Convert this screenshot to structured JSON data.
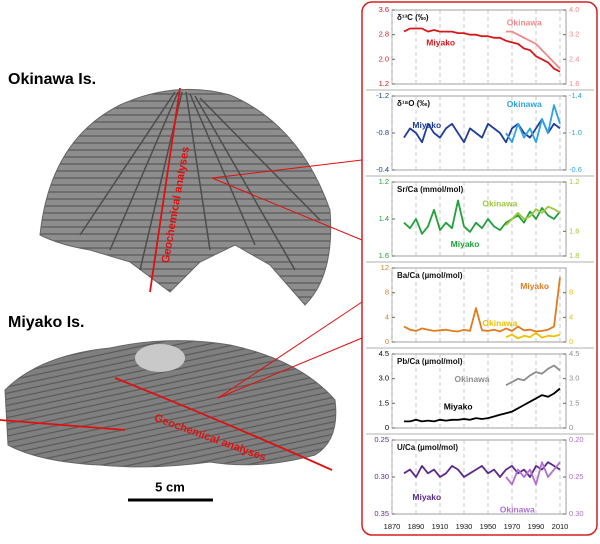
{
  "labels": {
    "okinawa": "Okinawa Is.",
    "miyako": "Miyako Is.",
    "analysis_okinawa": "Geochemical analyses",
    "analysis_miyako": "Geochemical analyses",
    "scale": "5 cm"
  },
  "chart_data": [
    {
      "type": "line",
      "title": "δ¹³C (‰)",
      "x": [
        1880,
        1885,
        1890,
        1895,
        1900,
        1905,
        1910,
        1915,
        1920,
        1925,
        1930,
        1935,
        1940,
        1945,
        1950,
        1955,
        1960,
        1965,
        1970,
        1975,
        1980,
        1985,
        1990,
        1995,
        2000,
        2005,
        2010
      ],
      "xlim": [
        1870,
        2015
      ],
      "xticks": [
        1870,
        1890,
        1910,
        1930,
        1950,
        1970,
        1990,
        2010
      ],
      "xgrid": true,
      "ylim": [
        1.2,
        3.6
      ],
      "yticks": [
        1.2,
        {
          "value": 2,
          "label": "2.0"
        },
        2.8,
        3.6
      ],
      "y2lim": [
        1.6,
        4
      ],
      "y2ticks": [
        1.6,
        2.4,
        3.2,
        {
          "value": 4,
          "label": "4.0"
        }
      ],
      "series": [
        {
          "name": "Miyako",
          "color": "#d7191c",
          "values": [
            2.9,
            3.0,
            3.0,
            3.0,
            2.9,
            2.95,
            2.9,
            2.9,
            2.9,
            2.85,
            2.85,
            2.8,
            2.8,
            2.75,
            2.75,
            2.7,
            2.7,
            2.6,
            2.55,
            2.5,
            2.35,
            2.3,
            2.1,
            2.0,
            1.9,
            1.7,
            1.6
          ]
        },
        {
          "name": "Okinawa",
          "color": "#ef8a8a",
          "axis": "y2",
          "values": [
            null,
            null,
            null,
            null,
            null,
            null,
            null,
            null,
            null,
            null,
            null,
            null,
            null,
            null,
            null,
            null,
            null,
            3.3,
            3.3,
            3.2,
            3.1,
            3.0,
            2.9,
            2.7,
            2.5,
            2.3,
            2.1
          ]
        }
      ]
    },
    {
      "type": "line",
      "title": "δ¹⁸O (‰)",
      "x": [
        1880,
        1885,
        1890,
        1895,
        1900,
        1905,
        1910,
        1915,
        1920,
        1925,
        1930,
        1935,
        1940,
        1945,
        1950,
        1955,
        1960,
        1965,
        1970,
        1975,
        1980,
        1985,
        1990,
        1995,
        2000,
        2005,
        2010
      ],
      "xlim": [
        1870,
        2015
      ],
      "xticks": [
        1870,
        1890,
        1910,
        1930,
        1950,
        1970,
        1990,
        2010
      ],
      "xgrid": true,
      "ylim": [
        -0.4,
        -1.2
      ],
      "yticks": [
        -1.2,
        -0.8,
        -0.4
      ],
      "y2lim": [
        -0.6,
        -1.4
      ],
      "y2ticks": [
        -1.4,
        {
          "value": -1,
          "label": "-1.0"
        },
        -0.6
      ],
      "series": [
        {
          "name": "Miyako",
          "color": "#1f3d99",
          "values": [
            -0.75,
            -0.85,
            -0.8,
            -0.7,
            -0.9,
            -0.8,
            -0.75,
            -0.85,
            -0.9,
            -0.8,
            -0.7,
            -0.85,
            -0.8,
            -0.75,
            -0.9,
            -0.85,
            -0.8,
            -0.7,
            -0.85,
            -0.9,
            -0.8,
            -0.75,
            -0.85,
            -0.95,
            -0.8,
            -0.9,
            -0.85
          ]
        },
        {
          "name": "Okinawa",
          "color": "#2ea3e0",
          "axis": "y2",
          "values": [
            null,
            null,
            null,
            null,
            null,
            null,
            null,
            null,
            null,
            null,
            null,
            null,
            null,
            null,
            null,
            null,
            null,
            -1.0,
            -0.9,
            -1.1,
            -0.95,
            -1.05,
            -0.9,
            -1.15,
            -1.0,
            -1.3,
            -1.1
          ]
        }
      ]
    },
    {
      "type": "line",
      "title": "Sr/Ca (mmol/mol)",
      "x": [
        1880,
        1885,
        1890,
        1895,
        1900,
        1905,
        1910,
        1915,
        1920,
        1925,
        1930,
        1935,
        1940,
        1945,
        1950,
        1955,
        1960,
        1965,
        1970,
        1975,
        1980,
        1985,
        1990,
        1995,
        2000,
        2005,
        2010
      ],
      "xlim": [
        1870,
        2015
      ],
      "xticks": [
        1870,
        1890,
        1910,
        1930,
        1950,
        1970,
        1990,
        2010
      ],
      "xgrid": true,
      "ylim": [
        1.6,
        1.2
      ],
      "yticks": [
        1.2,
        1.4,
        1.6
      ],
      "y2lim": [
        1.8,
        1.2
      ],
      "y2ticks": [
        1.2,
        1.6,
        1.8
      ],
      "series": [
        {
          "name": "Miyako",
          "color": "#22a03a",
          "values": [
            1.42,
            1.45,
            1.4,
            1.48,
            1.44,
            1.35,
            1.46,
            1.42,
            1.45,
            1.3,
            1.44,
            1.47,
            1.42,
            1.45,
            1.4,
            1.44,
            1.46,
            1.42,
            1.4,
            1.38,
            1.42,
            1.36,
            1.4,
            1.34,
            1.38,
            1.4,
            1.36
          ]
        },
        {
          "name": "Okinawa",
          "color": "#9cc83c",
          "axis": "y2",
          "values": [
            null,
            null,
            null,
            null,
            null,
            null,
            null,
            null,
            null,
            null,
            null,
            null,
            null,
            null,
            null,
            null,
            null,
            1.55,
            1.5,
            1.45,
            1.5,
            1.48,
            1.42,
            1.45,
            1.4,
            1.42,
            1.45
          ]
        }
      ]
    },
    {
      "type": "line",
      "title": "Ba/Ca (µmol/mol)",
      "x": [
        1880,
        1885,
        1890,
        1895,
        1900,
        1905,
        1910,
        1915,
        1920,
        1925,
        1930,
        1935,
        1940,
        1945,
        1950,
        1955,
        1960,
        1965,
        1970,
        1975,
        1980,
        1985,
        1990,
        1995,
        2000,
        2005,
        2010
      ],
      "xlim": [
        1870,
        2015
      ],
      "xticks": [
        1870,
        1890,
        1910,
        1930,
        1950,
        1970,
        1990,
        2010
      ],
      "xgrid": true,
      "ylim": [
        0,
        12
      ],
      "yticks": [
        0,
        4,
        8,
        12
      ],
      "y2lim": [
        0,
        12
      ],
      "y2ticks": [
        0,
        4,
        8
      ],
      "series": [
        {
          "name": "Miyako",
          "color": "#e07b20",
          "values": [
            2.5,
            2.0,
            1.8,
            2.2,
            2.0,
            1.8,
            1.9,
            2.0,
            1.8,
            1.7,
            2.0,
            1.8,
            5.5,
            1.9,
            1.8,
            2.0,
            1.7,
            2.2,
            1.8,
            2.5,
            1.9,
            2.0,
            1.7,
            1.8,
            2.0,
            2.5,
            10.5
          ]
        },
        {
          "name": "Okinawa",
          "color": "#f0c000",
          "axis": "y2",
          "values": [
            null,
            null,
            null,
            null,
            null,
            null,
            null,
            null,
            null,
            null,
            null,
            null,
            null,
            null,
            null,
            null,
            null,
            0.8,
            1.2,
            0.6,
            1.0,
            0.8,
            1.5,
            0.7,
            1.0,
            0.9,
            1.2
          ]
        }
      ]
    },
    {
      "type": "line",
      "title": "Pb/Ca (µmol/mol)",
      "x": [
        1880,
        1885,
        1890,
        1895,
        1900,
        1905,
        1910,
        1915,
        1920,
        1925,
        1930,
        1935,
        1940,
        1945,
        1950,
        1955,
        1960,
        1965,
        1970,
        1975,
        1980,
        1985,
        1990,
        1995,
        2000,
        2005,
        2010
      ],
      "xlim": [
        1870,
        2015
      ],
      "xticks": [
        1870,
        1890,
        1910,
        1930,
        1950,
        1970,
        1990,
        2010
      ],
      "xgrid": true,
      "ylim": [
        0,
        4.5
      ],
      "yticks": [
        0,
        1.5,
        {
          "value": 3,
          "label": "3.0"
        },
        4.5
      ],
      "y2lim": [
        0,
        4.5
      ],
      "y2ticks": [
        0,
        1.5,
        {
          "value": 3,
          "label": "3.0"
        },
        4.5
      ],
      "series": [
        {
          "name": "Miyako",
          "color": "#000000",
          "values": [
            0.4,
            0.4,
            0.5,
            0.4,
            0.45,
            0.4,
            0.5,
            0.45,
            0.5,
            0.5,
            0.55,
            0.5,
            0.6,
            0.55,
            0.6,
            0.7,
            0.8,
            0.9,
            1.0,
            1.2,
            1.4,
            1.6,
            1.8,
            2.0,
            1.9,
            2.1,
            2.4
          ]
        },
        {
          "name": "Okinawa",
          "color": "#8c8c8c",
          "axis": "y2",
          "values": [
            null,
            null,
            null,
            null,
            null,
            null,
            null,
            null,
            null,
            null,
            null,
            null,
            null,
            null,
            null,
            null,
            null,
            2.6,
            2.8,
            3.0,
            2.9,
            3.2,
            3.4,
            3.3,
            3.6,
            3.8,
            3.5
          ]
        }
      ]
    },
    {
      "type": "line",
      "title": "U/Ca (µmol/mol)",
      "x": [
        1880,
        1885,
        1890,
        1895,
        1900,
        1905,
        1910,
        1915,
        1920,
        1925,
        1930,
        1935,
        1940,
        1945,
        1950,
        1955,
        1960,
        1965,
        1970,
        1975,
        1980,
        1985,
        1990,
        1995,
        2000,
        2005,
        2010
      ],
      "xlim": [
        1870,
        2015
      ],
      "xticks": [
        1870,
        1890,
        1910,
        1930,
        1950,
        1970,
        1990,
        2010
      ],
      "xgrid": true,
      "ylim": [
        0.35,
        0.25
      ],
      "yticks": [
        0.25,
        {
          "value": 0.3,
          "label": "0.30"
        },
        0.35
      ],
      "y2lim": [
        0.3,
        0.2
      ],
      "y2ticks": [
        {
          "value": 0.2,
          "label": "0.20"
        },
        0.25,
        {
          "value": 0.3,
          "label": "0.30"
        }
      ],
      "series": [
        {
          "name": "Miyako",
          "color": "#5b2a8c",
          "values": [
            0.295,
            0.29,
            0.3,
            0.285,
            0.295,
            0.29,
            0.3,
            0.295,
            0.285,
            0.29,
            0.3,
            0.295,
            0.29,
            0.285,
            0.295,
            0.29,
            0.3,
            0.29,
            0.285,
            0.295,
            0.29,
            0.3,
            0.285,
            0.29,
            0.28,
            0.285,
            0.29
          ]
        },
        {
          "name": "Okinawa",
          "color": "#b070d0",
          "axis": "y2",
          "values": [
            null,
            null,
            null,
            null,
            null,
            null,
            null,
            null,
            null,
            null,
            null,
            null,
            null,
            null,
            null,
            null,
            null,
            0.25,
            0.26,
            0.24,
            0.25,
            0.24,
            0.26,
            0.23,
            0.25,
            0.24,
            0.23
          ]
        }
      ]
    }
  ]
}
